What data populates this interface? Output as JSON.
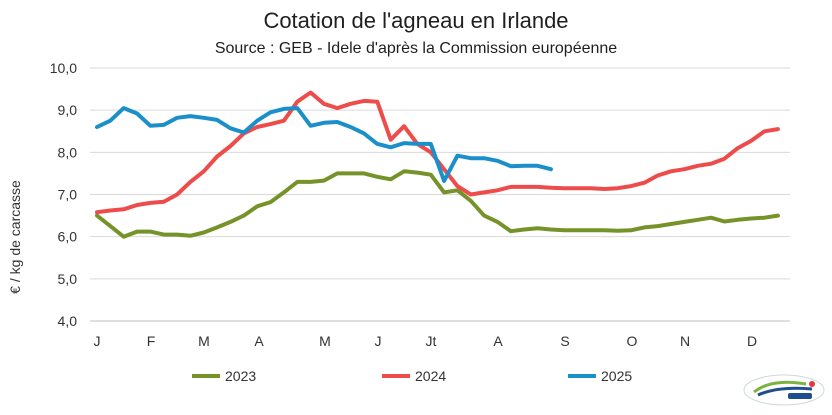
{
  "chart_data": {
    "type": "line",
    "title": "Cotation de l'agneau en Irlande",
    "subtitle": "Source : GEB - Idele d'après la Commission européenne",
    "ylabel": "€ / kg de carcasse",
    "xlabel": "",
    "ylim": [
      4.0,
      10.0
    ],
    "yticks": [
      "4,0",
      "5,0",
      "6,0",
      "7,0",
      "8,0",
      "9,0",
      "10,0"
    ],
    "ytick_values": [
      4,
      5,
      6,
      7,
      8,
      9,
      10
    ],
    "month_labels": [
      "J",
      "F",
      "M",
      "A",
      "M",
      "J",
      "Jt",
      "A",
      "S",
      "O",
      "N",
      "D"
    ],
    "grid": "horizontal",
    "legend_position": "bottom",
    "series": [
      {
        "name": "2023",
        "color": "#76932a",
        "values": [
          6.5,
          6.25,
          6.0,
          6.12,
          6.12,
          6.05,
          6.05,
          6.02,
          6.1,
          6.22,
          6.35,
          6.5,
          6.72,
          6.82,
          7.05,
          7.3,
          7.3,
          7.33,
          7.5,
          7.5,
          7.5,
          7.42,
          7.36,
          7.55,
          7.52,
          7.47,
          7.05,
          7.1,
          6.85,
          6.5,
          6.35,
          6.13,
          6.17,
          6.2,
          6.17,
          6.15,
          6.15,
          6.15,
          6.15,
          6.14,
          6.15,
          6.22,
          6.25,
          6.3,
          6.35,
          6.4,
          6.45,
          6.36,
          6.4,
          6.43,
          6.45,
          6.5
        ]
      },
      {
        "name": "2024",
        "color": "#ee4b4b",
        "values": [
          6.58,
          6.62,
          6.65,
          6.75,
          6.8,
          6.83,
          7.0,
          7.3,
          7.55,
          7.9,
          8.15,
          8.45,
          8.6,
          8.67,
          8.75,
          9.2,
          9.42,
          9.15,
          9.05,
          9.15,
          9.22,
          9.2,
          8.3,
          8.62,
          8.2,
          8.0,
          7.6,
          7.2,
          7.0,
          7.05,
          7.1,
          7.18,
          7.18,
          7.18,
          7.16,
          7.15,
          7.15,
          7.15,
          7.13,
          7.15,
          7.2,
          7.28,
          7.45,
          7.55,
          7.6,
          7.68,
          7.73,
          7.85,
          8.1,
          8.27,
          8.5,
          8.55
        ]
      },
      {
        "name": "2025",
        "color": "#1b8fc9",
        "values": [
          8.6,
          8.75,
          9.05,
          8.92,
          8.63,
          8.65,
          8.82,
          8.86,
          8.82,
          8.77,
          8.57,
          8.47,
          8.75,
          8.95,
          9.03,
          9.05,
          8.63,
          8.7,
          8.72,
          8.6,
          8.45,
          8.2,
          8.12,
          8.22,
          8.2,
          8.2,
          7.32,
          7.92,
          7.86,
          7.86,
          7.8,
          7.67,
          7.68,
          7.68,
          7.6
        ]
      }
    ]
  },
  "colors": {
    "grid": "#d9d9d9",
    "axis": "#bfbfbf",
    "logo_primary": "#1f4e8c",
    "logo_accent": "#7cb342"
  },
  "logo": {
    "icon": "idele-logo-icon"
  }
}
